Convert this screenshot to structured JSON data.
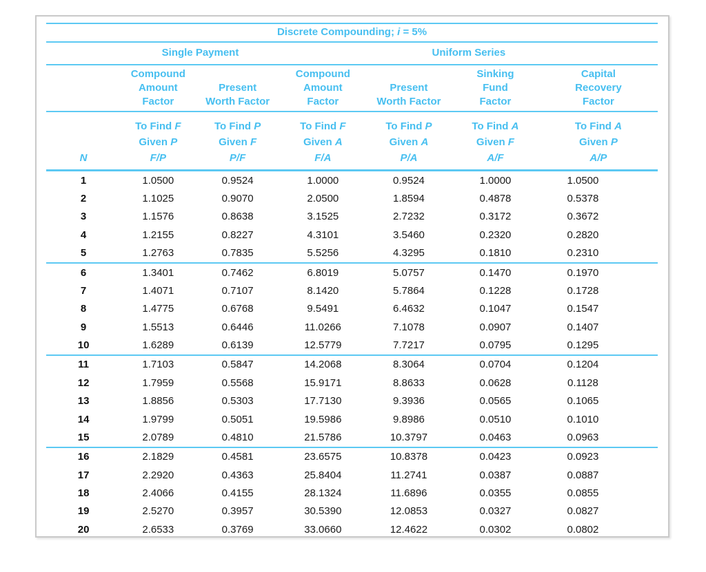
{
  "accent_color": "#47bff0",
  "line_color": "#5cc9f3",
  "table": {
    "title": {
      "pre": "Discrete Compounding; ",
      "sym": "i",
      "post": " = 5%"
    },
    "groups": {
      "single_payment": "Single Payment",
      "uniform_series": "Uniform Series"
    },
    "factor_headers": {
      "fp": [
        "Compound",
        "Amount",
        "Factor"
      ],
      "pf": [
        "Present",
        "Worth Factor"
      ],
      "fa": [
        "Compound",
        "Amount",
        "Factor"
      ],
      "pa": [
        "Present",
        "Worth Factor"
      ],
      "af": [
        "Sinking",
        "Fund",
        "Factor"
      ],
      "ap": [
        "Capital",
        "Recovery",
        "Factor"
      ]
    },
    "n_header": "N",
    "subheaders": {
      "fp": {
        "find": "To Find ",
        "find_sym": "F",
        "given": "Given ",
        "given_sym": "P",
        "ratio": "F/P"
      },
      "pf": {
        "find": "To Find ",
        "find_sym": "P",
        "given": "Given ",
        "given_sym": "F",
        "ratio": "P/F"
      },
      "fa": {
        "find": "To Find ",
        "find_sym": "F",
        "given": "Given ",
        "given_sym": "A",
        "ratio": "F/A"
      },
      "pa": {
        "find": "To Find ",
        "find_sym": "P",
        "given": "Given ",
        "given_sym": "A",
        "ratio": "P/A"
      },
      "af": {
        "find": "To Find ",
        "find_sym": "A",
        "given": "Given ",
        "given_sym": "F",
        "ratio": "A/F"
      },
      "ap": {
        "find": "To Find ",
        "find_sym": "A",
        "given": "Given ",
        "given_sym": "P",
        "ratio": "A/P"
      }
    },
    "rows": [
      [
        "1",
        "1.0500",
        "0.9524",
        "1.0000",
        "0.9524",
        "1.0000",
        "1.0500"
      ],
      [
        "2",
        "1.1025",
        "0.9070",
        "2.0500",
        "1.8594",
        "0.4878",
        "0.5378"
      ],
      [
        "3",
        "1.1576",
        "0.8638",
        "3.1525",
        "2.7232",
        "0.3172",
        "0.3672"
      ],
      [
        "4",
        "1.2155",
        "0.8227",
        "4.3101",
        "3.5460",
        "0.2320",
        "0.2820"
      ],
      [
        "5",
        "1.2763",
        "0.7835",
        "5.5256",
        "4.3295",
        "0.1810",
        "0.2310"
      ],
      [
        "6",
        "1.3401",
        "0.7462",
        "6.8019",
        "5.0757",
        "0.1470",
        "0.1970"
      ],
      [
        "7",
        "1.4071",
        "0.7107",
        "8.1420",
        "5.7864",
        "0.1228",
        "0.1728"
      ],
      [
        "8",
        "1.4775",
        "0.6768",
        "9.5491",
        "6.4632",
        "0.1047",
        "0.1547"
      ],
      [
        "9",
        "1.5513",
        "0.6446",
        "11.0266",
        "7.1078",
        "0.0907",
        "0.1407"
      ],
      [
        "10",
        "1.6289",
        "0.6139",
        "12.5779",
        "7.7217",
        "0.0795",
        "0.1295"
      ],
      [
        "11",
        "1.7103",
        "0.5847",
        "14.2068",
        "8.3064",
        "0.0704",
        "0.1204"
      ],
      [
        "12",
        "1.7959",
        "0.5568",
        "15.9171",
        "8.8633",
        "0.0628",
        "0.1128"
      ],
      [
        "13",
        "1.8856",
        "0.5303",
        "17.7130",
        "9.3936",
        "0.0565",
        "0.1065"
      ],
      [
        "14",
        "1.9799",
        "0.5051",
        "19.5986",
        "9.8986",
        "0.0510",
        "0.1010"
      ],
      [
        "15",
        "2.0789",
        "0.4810",
        "21.5786",
        "10.3797",
        "0.0463",
        "0.0963"
      ],
      [
        "16",
        "2.1829",
        "0.4581",
        "23.6575",
        "10.8378",
        "0.0423",
        "0.0923"
      ],
      [
        "17",
        "2.2920",
        "0.4363",
        "25.8404",
        "11.2741",
        "0.0387",
        "0.0887"
      ],
      [
        "18",
        "2.4066",
        "0.4155",
        "28.1324",
        "11.6896",
        "0.0355",
        "0.0855"
      ],
      [
        "19",
        "2.5270",
        "0.3957",
        "30.5390",
        "12.0853",
        "0.0327",
        "0.0827"
      ],
      [
        "20",
        "2.6533",
        "0.3769",
        "33.0660",
        "12.4622",
        "0.0302",
        "0.0802"
      ]
    ]
  }
}
